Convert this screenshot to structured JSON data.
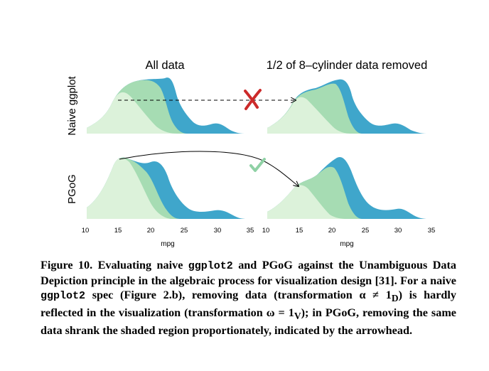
{
  "figure": {
    "column_titles": [
      "All data",
      "1/2 of 8–cylinder data removed"
    ],
    "row_labels": [
      "Naive ggplot",
      "PGoG"
    ],
    "x_axis": {
      "label": "mpg",
      "ticks": [
        "10",
        "15",
        "20",
        "25",
        "30",
        "35"
      ]
    },
    "colors": {
      "blue": "#3fa6cb",
      "mid_green": "#a6dcb3",
      "light_green": "#dcf2da",
      "cross": "#cc2a2a",
      "check": "#8fd1a5"
    },
    "markers": {
      "fail": "cross-mark",
      "pass": "check-mark"
    }
  },
  "caption": {
    "parts": [
      "Figure 10. Evaluating naive ",
      "ggplot2",
      " and PGoG against the Unambiguous Data Depiction principle in the algebraic process for visualization design [31]. For a naive ",
      "ggplot2",
      " spec (Figure 2.b), removing data (transformation α ≠ 1",
      "D",
      ") is hardly reflected in the visualization (transformation ω = 1",
      "V",
      "); in PGoG, removing the same data shrank the shaded region proportionately, indicated by the arrowhead."
    ]
  }
}
